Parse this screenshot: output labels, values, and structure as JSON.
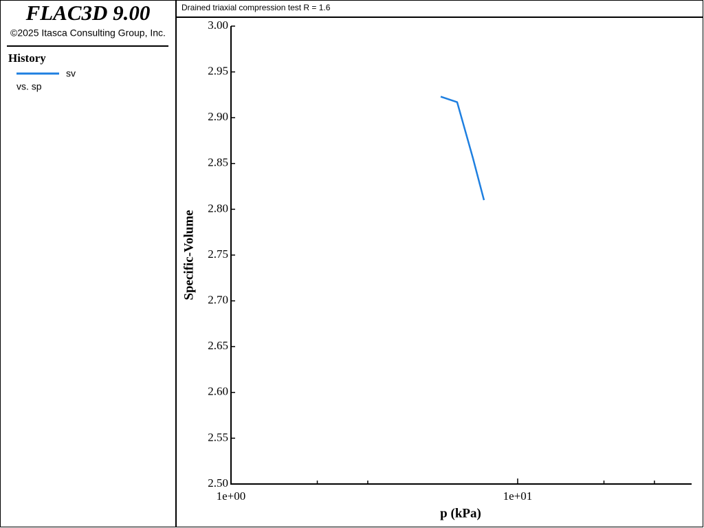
{
  "app": {
    "title": "FLAC3D 9.00",
    "copyright": "©2025 Itasca Consulting Group, Inc."
  },
  "legend": {
    "heading": "History",
    "subtitle": "vs. sp"
  },
  "chart_data": {
    "type": "line",
    "title": "Drained triaxial compression test R = 1.6",
    "x_label": "p (kPa)",
    "y_label": "Specific-Volume",
    "xscale": "log",
    "x": [
      5.39,
      6.15,
      6.98,
      7.63
    ],
    "series": [
      {
        "name": "sv",
        "color": "#1e7fe0",
        "values": [
          2.923,
          2.917,
          2.856,
          2.81
        ]
      }
    ],
    "xlim": [
      1,
      40
    ],
    "xticks": [
      {
        "value": 1,
        "label": "1e+00"
      },
      {
        "value": 10,
        "label": "1e+01"
      }
    ],
    "xminor_ticks": [
      2,
      3,
      20,
      30
    ],
    "ylim": [
      2.5,
      3.0
    ],
    "yticks": [
      {
        "value": 2.5,
        "label": "2.50"
      },
      2.55,
      {
        "value": 2.6,
        "label": "2.60"
      },
      2.65,
      {
        "value": 2.7,
        "label": "2.70"
      },
      2.75,
      {
        "value": 2.8,
        "label": "2.80"
      },
      2.85,
      {
        "value": 2.9,
        "label": "2.90"
      },
      2.95,
      {
        "value": 3.0,
        "label": "3.00"
      }
    ],
    "grid": false
  }
}
